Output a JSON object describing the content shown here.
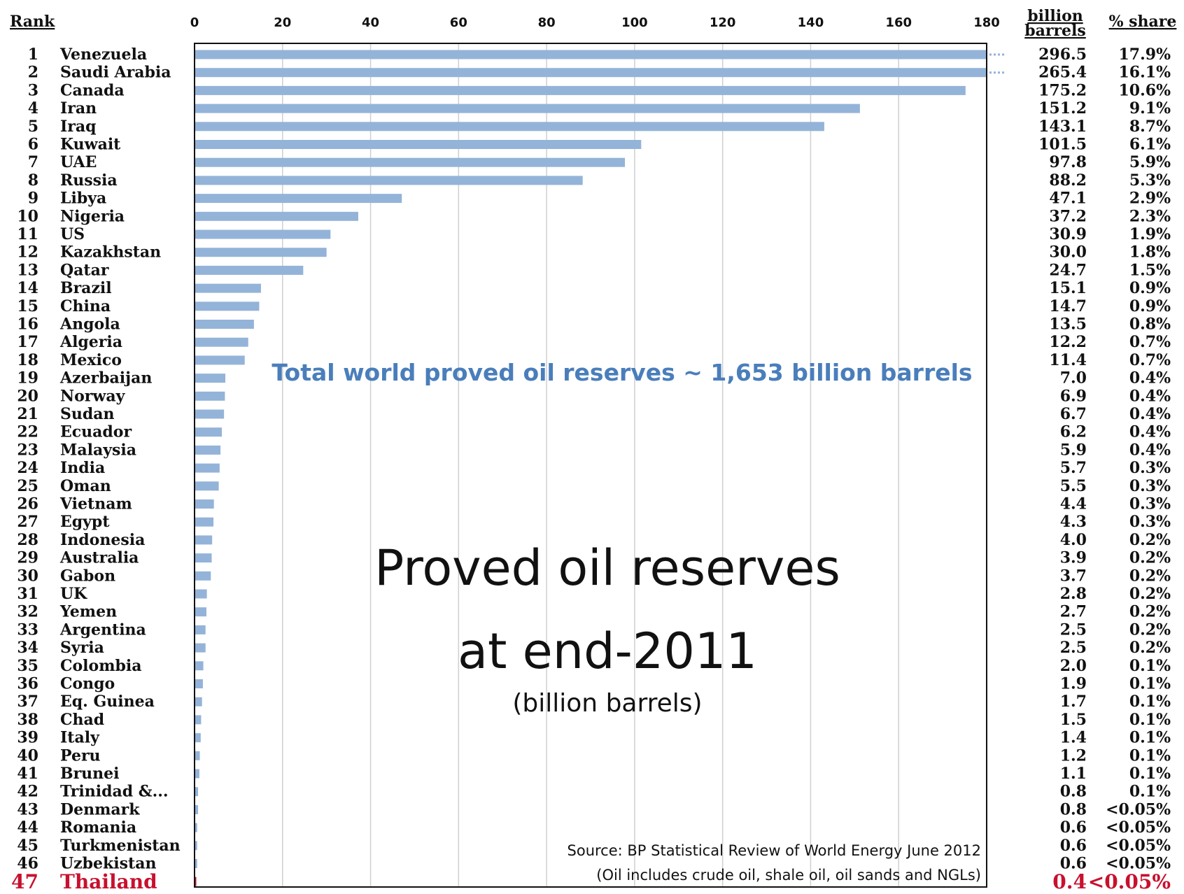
{
  "chart_data": {
    "type": "bar",
    "orientation": "horizontal",
    "title": "Proved oil reserves",
    "title_line2": "at end-2011",
    "subtitle": "(billion barrels)",
    "annotation": "Total world proved oil reserves  ~ 1,653 billion barrels",
    "source": "Source:  BP Statistical Review of World Energy June 2012",
    "source_note": "(Oil includes crude oil, shale oil, oil sands and NGLs)",
    "headers": {
      "rank": "Rank",
      "value_line1": "billion",
      "value_line2": "barrels",
      "share": "% share"
    },
    "xlim": [
      0,
      180
    ],
    "xticks": [
      "0",
      "20",
      "40",
      "60",
      "80",
      "100",
      "120",
      "140",
      "160",
      "180"
    ],
    "grid": true,
    "bar_color": "#94b3d8",
    "highlight_color": "#c8102e",
    "rows": [
      {
        "rank": "1",
        "country": "Venezuela",
        "value": 296.5,
        "value_label": "296.5",
        "share": "17.9%",
        "truncated": true
      },
      {
        "rank": "2",
        "country": "Saudi Arabia",
        "value": 265.4,
        "value_label": "265.4",
        "share": "16.1%",
        "truncated": true
      },
      {
        "rank": "3",
        "country": "Canada",
        "value": 175.2,
        "value_label": "175.2",
        "share": "10.6%"
      },
      {
        "rank": "4",
        "country": "Iran",
        "value": 151.2,
        "value_label": "151.2",
        "share": "9.1%"
      },
      {
        "rank": "5",
        "country": "Iraq",
        "value": 143.1,
        "value_label": "143.1",
        "share": "8.7%"
      },
      {
        "rank": "6",
        "country": "Kuwait",
        "value": 101.5,
        "value_label": "101.5",
        "share": "6.1%"
      },
      {
        "rank": "7",
        "country": "UAE",
        "value": 97.8,
        "value_label": "97.8",
        "share": "5.9%"
      },
      {
        "rank": "8",
        "country": "Russia",
        "value": 88.2,
        "value_label": "88.2",
        "share": "5.3%"
      },
      {
        "rank": "9",
        "country": "Libya",
        "value": 47.1,
        "value_label": "47.1",
        "share": "2.9%"
      },
      {
        "rank": "10",
        "country": "Nigeria",
        "value": 37.2,
        "value_label": "37.2",
        "share": "2.3%"
      },
      {
        "rank": "11",
        "country": "US",
        "value": 30.9,
        "value_label": "30.9",
        "share": "1.9%"
      },
      {
        "rank": "12",
        "country": "Kazakhstan",
        "value": 30.0,
        "value_label": "30.0",
        "share": "1.8%"
      },
      {
        "rank": "13",
        "country": "Qatar",
        "value": 24.7,
        "value_label": "24.7",
        "share": "1.5%"
      },
      {
        "rank": "14",
        "country": "Brazil",
        "value": 15.1,
        "value_label": "15.1",
        "share": "0.9%"
      },
      {
        "rank": "15",
        "country": "China",
        "value": 14.7,
        "value_label": "14.7",
        "share": "0.9%"
      },
      {
        "rank": "16",
        "country": "Angola",
        "value": 13.5,
        "value_label": "13.5",
        "share": "0.8%"
      },
      {
        "rank": "17",
        "country": "Algeria",
        "value": 12.2,
        "value_label": "12.2",
        "share": "0.7%"
      },
      {
        "rank": "18",
        "country": "Mexico",
        "value": 11.4,
        "value_label": "11.4",
        "share": "0.7%"
      },
      {
        "rank": "19",
        "country": "Azerbaijan",
        "value": 7.0,
        "value_label": "7.0",
        "share": "0.4%"
      },
      {
        "rank": "20",
        "country": "Norway",
        "value": 6.9,
        "value_label": "6.9",
        "share": "0.4%"
      },
      {
        "rank": "21",
        "country": "Sudan",
        "value": 6.7,
        "value_label": "6.7",
        "share": "0.4%"
      },
      {
        "rank": "22",
        "country": "Ecuador",
        "value": 6.2,
        "value_label": "6.2",
        "share": "0.4%"
      },
      {
        "rank": "23",
        "country": "Malaysia",
        "value": 5.9,
        "value_label": "5.9",
        "share": "0.4%"
      },
      {
        "rank": "24",
        "country": "India",
        "value": 5.7,
        "value_label": "5.7",
        "share": "0.3%"
      },
      {
        "rank": "25",
        "country": "Oman",
        "value": 5.5,
        "value_label": "5.5",
        "share": "0.3%"
      },
      {
        "rank": "26",
        "country": "Vietnam",
        "value": 4.4,
        "value_label": "4.4",
        "share": "0.3%"
      },
      {
        "rank": "27",
        "country": "Egypt",
        "value": 4.3,
        "value_label": "4.3",
        "share": "0.3%"
      },
      {
        "rank": "28",
        "country": "Indonesia",
        "value": 4.0,
        "value_label": "4.0",
        "share": "0.2%"
      },
      {
        "rank": "29",
        "country": "Australia",
        "value": 3.9,
        "value_label": "3.9",
        "share": "0.2%"
      },
      {
        "rank": "30",
        "country": "Gabon",
        "value": 3.7,
        "value_label": "3.7",
        "share": "0.2%"
      },
      {
        "rank": "31",
        "country": "UK",
        "value": 2.8,
        "value_label": "2.8",
        "share": "0.2%"
      },
      {
        "rank": "32",
        "country": "Yemen",
        "value": 2.7,
        "value_label": "2.7",
        "share": "0.2%"
      },
      {
        "rank": "33",
        "country": "Argentina",
        "value": 2.5,
        "value_label": "2.5",
        "share": "0.2%"
      },
      {
        "rank": "34",
        "country": "Syria",
        "value": 2.5,
        "value_label": "2.5",
        "share": "0.2%"
      },
      {
        "rank": "35",
        "country": "Colombia",
        "value": 2.0,
        "value_label": "2.0",
        "share": "0.1%"
      },
      {
        "rank": "36",
        "country": "Congo",
        "value": 1.9,
        "value_label": "1.9",
        "share": "0.1%"
      },
      {
        "rank": "37",
        "country": "Eq. Guinea",
        "value": 1.7,
        "value_label": "1.7",
        "share": "0.1%"
      },
      {
        "rank": "38",
        "country": "Chad",
        "value": 1.5,
        "value_label": "1.5",
        "share": "0.1%"
      },
      {
        "rank": "39",
        "country": "Italy",
        "value": 1.4,
        "value_label": "1.4",
        "share": "0.1%"
      },
      {
        "rank": "40",
        "country": "Peru",
        "value": 1.2,
        "value_label": "1.2",
        "share": "0.1%"
      },
      {
        "rank": "41",
        "country": "Brunei",
        "value": 1.1,
        "value_label": "1.1",
        "share": "0.1%"
      },
      {
        "rank": "42",
        "country": "Trinidad &...",
        "value": 0.8,
        "value_label": "0.8",
        "share": "0.1%"
      },
      {
        "rank": "43",
        "country": "Denmark",
        "value": 0.8,
        "value_label": "0.8",
        "share": "<0.05%"
      },
      {
        "rank": "44",
        "country": "Romania",
        "value": 0.6,
        "value_label": "0.6",
        "share": "<0.05%"
      },
      {
        "rank": "45",
        "country": "Turkmenistan",
        "value": 0.6,
        "value_label": "0.6",
        "share": "<0.05%"
      },
      {
        "rank": "46",
        "country": "Uzbekistan",
        "value": 0.6,
        "value_label": "0.6",
        "share": "<0.05%"
      },
      {
        "rank": "47",
        "country": "Thailand",
        "value": 0.4,
        "value_label": "0.4",
        "share": "<0.05%",
        "highlight": true
      }
    ]
  }
}
